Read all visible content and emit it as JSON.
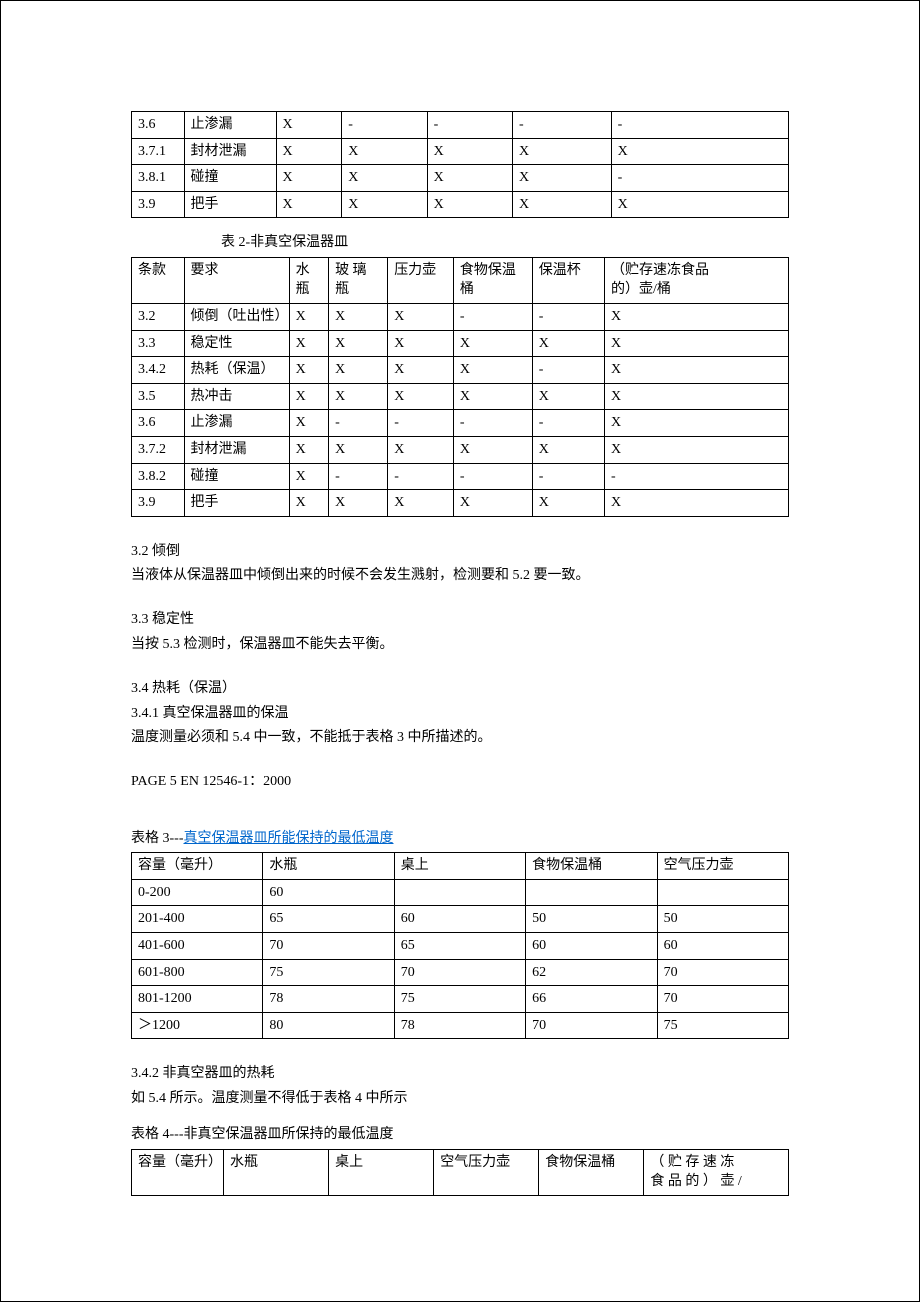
{
  "table1": {
    "rows": [
      [
        "3.6",
        "止渗漏",
        "X",
        "-",
        "-",
        "-",
        "-"
      ],
      [
        "3.7.1",
        "封材泄漏",
        "X",
        "X",
        "X",
        "X",
        "X"
      ],
      [
        "3.8.1",
        "碰撞",
        "X",
        "X",
        "X",
        "X",
        "-"
      ],
      [
        "3.9",
        "把手",
        "X",
        "X",
        "X",
        "X",
        "X"
      ]
    ]
  },
  "table2": {
    "caption": "表 2-非真空保温器皿",
    "header_rows": [
      [
        "条款",
        "要求",
        "水",
        "玻 璃",
        "压力壶",
        "食物保温",
        "保温杯",
        "（贮存速冻食品"
      ],
      [
        "",
        "",
        "瓶",
        "瓶",
        "",
        "桶",
        "",
        "的）壶/桶"
      ]
    ],
    "rows": [
      [
        "3.2",
        "倾倒（吐出性）",
        "X",
        "X",
        "X",
        "-",
        "-",
        "X"
      ],
      [
        "3.3",
        "稳定性",
        "X",
        "X",
        "X",
        "X",
        "X",
        "X"
      ],
      [
        "3.4.2",
        "热耗（保温）",
        "X",
        "X",
        "X",
        "X",
        "-",
        "X"
      ],
      [
        "3.5",
        "热冲击",
        "X",
        "X",
        "X",
        "X",
        "X",
        "X"
      ],
      [
        "3.6",
        "止渗漏",
        "X",
        "-",
        "-",
        "-",
        "-",
        "X"
      ],
      [
        "3.7.2",
        "封材泄漏",
        "X",
        "X",
        "X",
        "X",
        "X",
        "X"
      ],
      [
        "3.8.2",
        "碰撞",
        "X",
        "-",
        "-",
        "-",
        "-",
        "-"
      ],
      [
        "3.9",
        "把手",
        "X",
        "X",
        "X",
        "X",
        "X",
        "X"
      ]
    ]
  },
  "paragraphs": {
    "p1_title": "3.2  倾倒",
    "p1_body": "当液体从保温器皿中倾倒出来的时候不会发生溅射，检测要和 5.2 要一致。",
    "p2_title": "3.3 稳定性",
    "p2_body": "当按 5.3 检测时，保温器皿不能失去平衡。",
    "p3_title": "3.4 热耗（保温）",
    "p3_sub": "3.4.1 真空保温器皿的保温",
    "p3_body": "温度测量必须和 5.4 中一致，不能抵于表格 3 中所描述的。",
    "page_ref": "PAGE 5 EN 12546-1：2000",
    "t3_caption_prefix": "表格 3---",
    "t3_caption_link": "真空保温器皿所能保持的最低温度",
    "p4_title": "3.4.2 非真空器皿的热耗",
    "p4_body": "如 5.4 所示。温度测量不得低于表格 4 中所示",
    "t4_caption": "表格 4---非真空保温器皿所保持的最低温度"
  },
  "table3": {
    "header": [
      "容量（毫升）",
      "水瓶",
      "桌上",
      "食物保温桶",
      "空气压力壶"
    ],
    "rows": [
      [
        "0-200",
        "60",
        "",
        "",
        ""
      ],
      [
        "201-400",
        "65",
        "60",
        "50",
        "50"
      ],
      [
        "401-600",
        "70",
        "65",
        "60",
        "60"
      ],
      [
        "601-800",
        "75",
        "70",
        "62",
        "70"
      ],
      [
        "801-1200",
        "78",
        "75",
        "66",
        "70"
      ],
      [
        "＞1200",
        "80",
        "78",
        "70",
        "75"
      ]
    ]
  },
  "table4": {
    "header_rows": [
      [
        "容量（毫升）",
        "水瓶",
        "桌上",
        "空气压力壶",
        "食物保温桶",
        "（ 贮 存 速 冻"
      ],
      [
        "",
        "",
        "",
        "",
        "",
        "食 品 的 ） 壶 /"
      ]
    ]
  }
}
